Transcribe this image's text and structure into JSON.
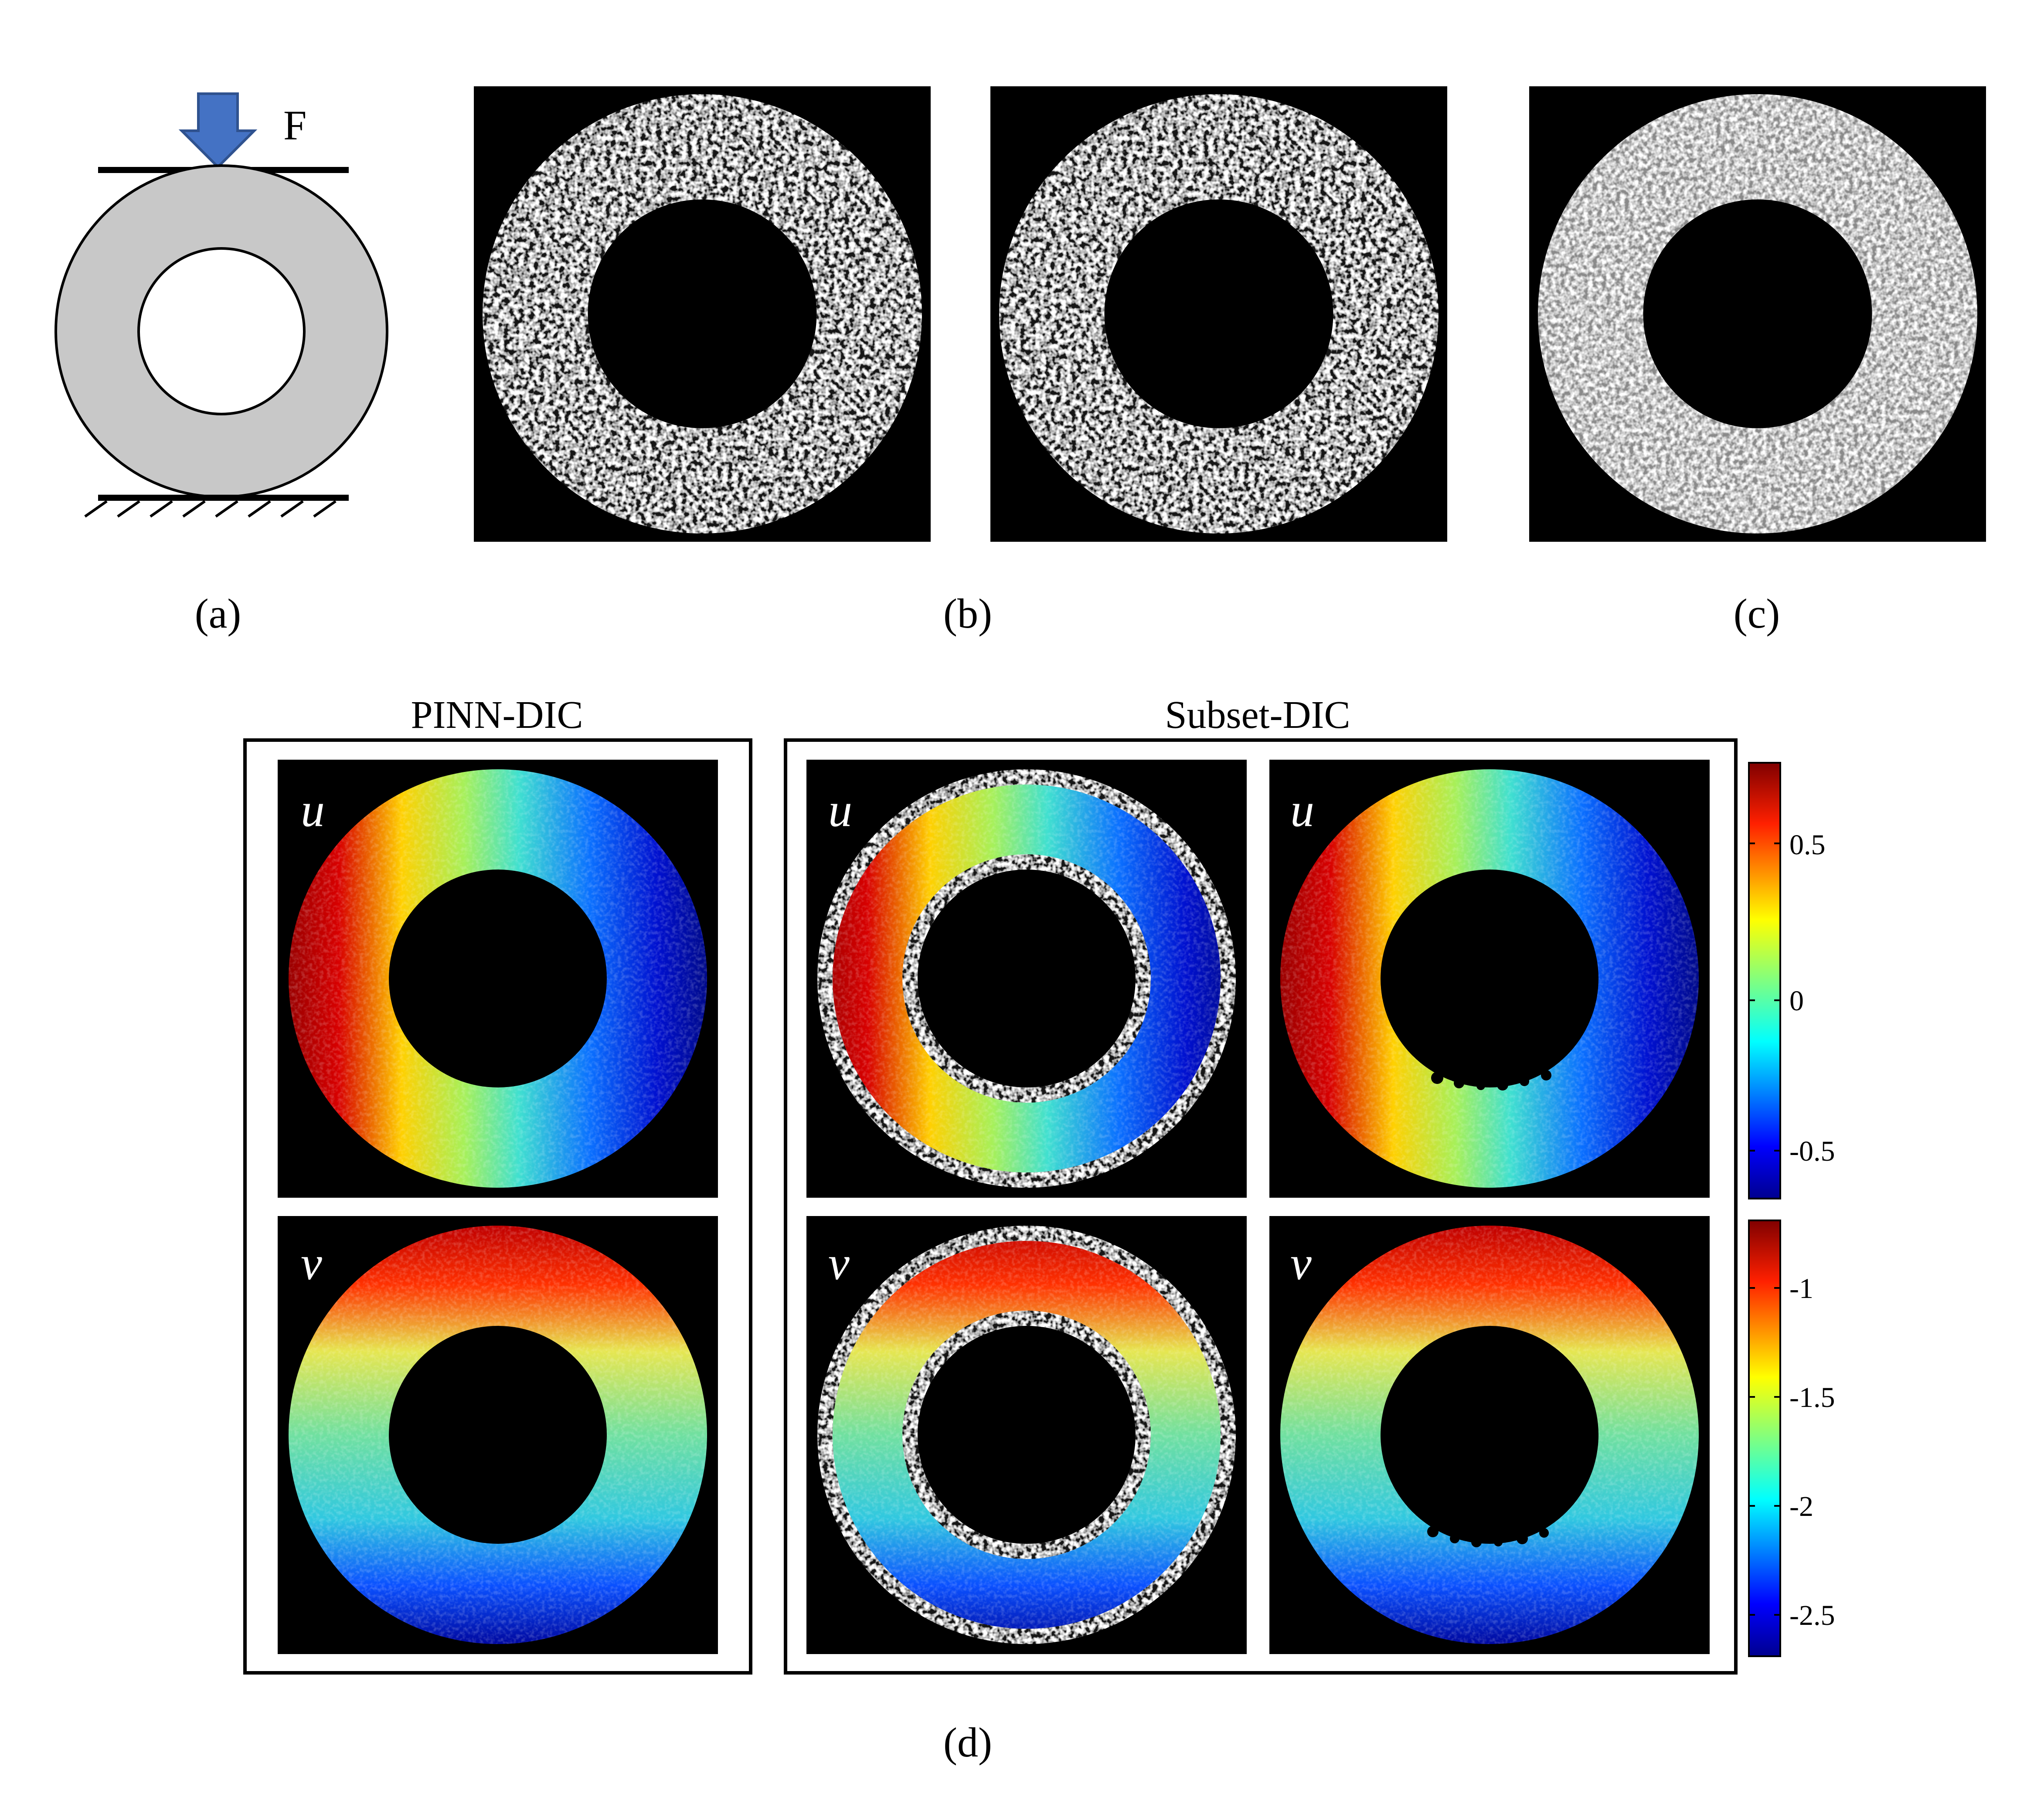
{
  "panel_a": {
    "force_label": "F",
    "caption": "(a)",
    "colors": {
      "ring": "#c8c8c8",
      "arrow": "#4472c4"
    }
  },
  "panel_b": {
    "caption": "(b)"
  },
  "panel_c": {
    "caption": "(c)"
  },
  "panel_d": {
    "caption": "(d)",
    "groups": [
      {
        "title": "PINN-DIC"
      },
      {
        "title": "Subset-DIC"
      }
    ],
    "field_labels": {
      "u": "u",
      "v": "v"
    },
    "colorbar_u": {
      "ticks": [
        "0.5",
        "0",
        "-0.5"
      ]
    },
    "colorbar_v": {
      "ticks": [
        "-1",
        "-1.5",
        "-2",
        "-2.5"
      ]
    },
    "colormap": [
      "#00008f",
      "#0000ff",
      "#0080ff",
      "#00ffff",
      "#80ff80",
      "#ffff00",
      "#ff8000",
      "#ff0000",
      "#800000"
    ]
  }
}
